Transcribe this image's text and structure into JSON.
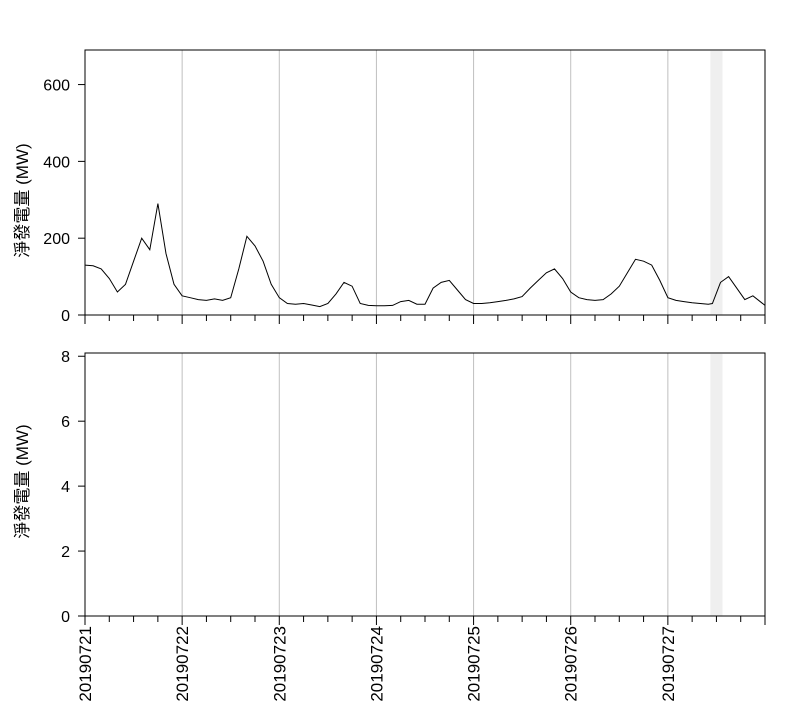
{
  "chart_data": [
    {
      "type": "line",
      "ylabel": "淨發電量 (MW)",
      "ylim": [
        0,
        690
      ],
      "yticks": [
        0,
        200,
        400,
        600
      ],
      "xlim": [
        0,
        168
      ],
      "grid": "vertical",
      "shade_interval_hours": [
        154.5,
        157.5
      ],
      "x_tick_labels": [
        "20190721",
        "20190722",
        "20190723",
        "20190724",
        "20190725",
        "20190726",
        "20190727"
      ],
      "x_hours": [
        0,
        2,
        4,
        6,
        8,
        10,
        12,
        14,
        16,
        18,
        20,
        22,
        24,
        26,
        28,
        30,
        32,
        34,
        36,
        38,
        40,
        42,
        44,
        46,
        48,
        50,
        52,
        54,
        56,
        58,
        60,
        62,
        64,
        66,
        68,
        70,
        72,
        74,
        76,
        78,
        80,
        82,
        84,
        86,
        88,
        90,
        92,
        94,
        96,
        98,
        100,
        102,
        104,
        106,
        108,
        110,
        112,
        114,
        116,
        118,
        120,
        122,
        124,
        126,
        128,
        130,
        132,
        134,
        136,
        138,
        140,
        142,
        144,
        146,
        148,
        150,
        152,
        154,
        155,
        157,
        159,
        161,
        163,
        165,
        168
      ],
      "series": [
        {
          "values": [
            130,
            128,
            120,
            95,
            60,
            80,
            140,
            200,
            170,
            290,
            160,
            80,
            50,
            45,
            40,
            38,
            42,
            38,
            45,
            120,
            205,
            180,
            140,
            80,
            45,
            30,
            28,
            30,
            26,
            22,
            30,
            55,
            85,
            75,
            30,
            25,
            24,
            24,
            25,
            35,
            38,
            28,
            28,
            70,
            85,
            90,
            65,
            40,
            30,
            30,
            32,
            35,
            38,
            42,
            48,
            70,
            90,
            110,
            120,
            95,
            60,
            45,
            40,
            38,
            40,
            55,
            75,
            110,
            145,
            140,
            130,
            90,
            45,
            38,
            35,
            32,
            30,
            28,
            30,
            85,
            100,
            70,
            40,
            50,
            25
          ]
        }
      ]
    },
    {
      "type": "line",
      "ylabel": "淨發電量 (MW)",
      "ylim": [
        0,
        8.1
      ],
      "yticks": [
        0,
        2,
        4,
        6,
        8
      ],
      "xlim": [
        0,
        168
      ],
      "grid": "vertical",
      "shade_interval_hours": [
        154.5,
        157.5
      ],
      "x_tick_labels": [
        "20190721",
        "20190722",
        "20190723",
        "20190724",
        "20190725",
        "20190726",
        "20190727"
      ],
      "x_hours": [
        0,
        168
      ],
      "series": [
        {
          "values": [
            0,
            0
          ]
        }
      ]
    }
  ]
}
